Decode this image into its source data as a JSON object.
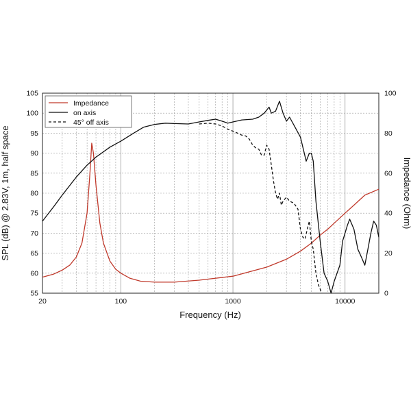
{
  "chart_data": {
    "type": "line",
    "title": "",
    "xlabel": "Frequency (Hz)",
    "ylabel_left": "SPL (dB) @ 2.83V, 1m, half space",
    "ylabel_right": "Impedance (Ohm)",
    "x_scale": "log",
    "xlim": [
      20,
      20000
    ],
    "ylim_left": [
      55,
      105
    ],
    "ylim_right": [
      0,
      100
    ],
    "x_ticks": [
      {
        "value": 20,
        "label": "20"
      },
      {
        "value": 100,
        "label": "100"
      },
      {
        "value": 1000,
        "label": "1000"
      },
      {
        "value": 10000,
        "label": "10000"
      }
    ],
    "y_ticks_left": [
      "55",
      "60",
      "65",
      "70",
      "75",
      "80",
      "85",
      "90",
      "95",
      "100",
      "105"
    ],
    "y_ticks_right": [
      "0",
      "20",
      "40",
      "60",
      "80",
      "100"
    ],
    "grid": true,
    "legend_position": "top-left",
    "colors": {
      "impedance": "#c0392b",
      "on_axis": "#111111",
      "off_axis": "#111111",
      "grid": "#9a9a9a"
    },
    "series": [
      {
        "name": "Impedance",
        "axis": "right",
        "style": "solid",
        "points": [
          [
            20,
            8
          ],
          [
            25,
            9.5
          ],
          [
            30,
            11.5
          ],
          [
            35,
            14
          ],
          [
            40,
            18
          ],
          [
            45,
            25
          ],
          [
            50,
            40
          ],
          [
            53,
            60
          ],
          [
            55,
            75
          ],
          [
            57,
            70
          ],
          [
            60,
            54
          ],
          [
            65,
            35
          ],
          [
            70,
            25
          ],
          [
            80,
            16
          ],
          [
            90,
            12
          ],
          [
            100,
            10
          ],
          [
            120,
            7.5
          ],
          [
            150,
            6
          ],
          [
            200,
            5.5
          ],
          [
            300,
            5.5
          ],
          [
            500,
            6.5
          ],
          [
            1000,
            8.5
          ],
          [
            2000,
            13
          ],
          [
            3000,
            17
          ],
          [
            4000,
            21
          ],
          [
            5000,
            25
          ],
          [
            6000,
            29
          ],
          [
            7000,
            32
          ],
          [
            8000,
            35
          ],
          [
            10000,
            40
          ],
          [
            12000,
            44
          ],
          [
            15000,
            49
          ],
          [
            20000,
            52
          ]
        ]
      },
      {
        "name": "on axis",
        "axis": "left",
        "style": "solid",
        "points": [
          [
            20,
            73
          ],
          [
            25,
            76.5
          ],
          [
            30,
            79.5
          ],
          [
            40,
            84
          ],
          [
            50,
            87
          ],
          [
            60,
            89
          ],
          [
            80,
            91.5
          ],
          [
            100,
            93
          ],
          [
            130,
            95
          ],
          [
            160,
            96.5
          ],
          [
            200,
            97.2
          ],
          [
            250,
            97.5
          ],
          [
            300,
            97.4
          ],
          [
            400,
            97.3
          ],
          [
            500,
            97.8
          ],
          [
            600,
            98.2
          ],
          [
            700,
            98.5
          ],
          [
            800,
            98
          ],
          [
            900,
            97.5
          ],
          [
            1000,
            97.8
          ],
          [
            1200,
            98.3
          ],
          [
            1500,
            98.5
          ],
          [
            1700,
            99
          ],
          [
            1900,
            100
          ],
          [
            2100,
            101.5
          ],
          [
            2200,
            100
          ],
          [
            2400,
            100.5
          ],
          [
            2600,
            103
          ],
          [
            2800,
            100
          ],
          [
            3000,
            98
          ],
          [
            3200,
            99
          ],
          [
            3500,
            97
          ],
          [
            4000,
            94
          ],
          [
            4500,
            88
          ],
          [
            4800,
            90
          ],
          [
            5000,
            90
          ],
          [
            5200,
            88
          ],
          [
            5500,
            78
          ],
          [
            6000,
            68
          ],
          [
            6500,
            60
          ],
          [
            7000,
            58
          ],
          [
            7500,
            55
          ],
          [
            8000,
            58
          ],
          [
            9000,
            62
          ],
          [
            9500,
            68
          ],
          [
            10000,
            70
          ],
          [
            10500,
            72
          ],
          [
            11000,
            73.5
          ],
          [
            12000,
            71
          ],
          [
            13000,
            66
          ],
          [
            14000,
            64
          ],
          [
            15000,
            62
          ],
          [
            16000,
            66
          ],
          [
            17000,
            70
          ],
          [
            18000,
            73
          ],
          [
            19000,
            72
          ],
          [
            20000,
            69
          ]
        ]
      },
      {
        "name": "45° off axis",
        "axis": "left",
        "style": "dashed",
        "points": [
          [
            500,
            97.3
          ],
          [
            600,
            97.5
          ],
          [
            700,
            97.3
          ],
          [
            800,
            96.8
          ],
          [
            900,
            96
          ],
          [
            1000,
            95.5
          ],
          [
            1100,
            95
          ],
          [
            1200,
            94.5
          ],
          [
            1300,
            94.3
          ],
          [
            1400,
            93.5
          ],
          [
            1500,
            92
          ],
          [
            1600,
            91.3
          ],
          [
            1700,
            91
          ],
          [
            1800,
            89.5
          ],
          [
            1900,
            89.5
          ],
          [
            2000,
            92
          ],
          [
            2100,
            91
          ],
          [
            2200,
            87
          ],
          [
            2300,
            83
          ],
          [
            2400,
            80
          ],
          [
            2500,
            78.5
          ],
          [
            2600,
            80
          ],
          [
            2700,
            77
          ],
          [
            2800,
            78
          ],
          [
            3000,
            79
          ],
          [
            3200,
            78
          ],
          [
            3500,
            77.5
          ],
          [
            3800,
            76
          ],
          [
            4000,
            71
          ],
          [
            4200,
            69
          ],
          [
            4400,
            68.5
          ],
          [
            4600,
            71
          ],
          [
            4800,
            73
          ],
          [
            5000,
            68
          ],
          [
            5200,
            66
          ],
          [
            5500,
            60
          ],
          [
            5800,
            57
          ],
          [
            6200,
            55
          ]
        ]
      }
    ]
  }
}
